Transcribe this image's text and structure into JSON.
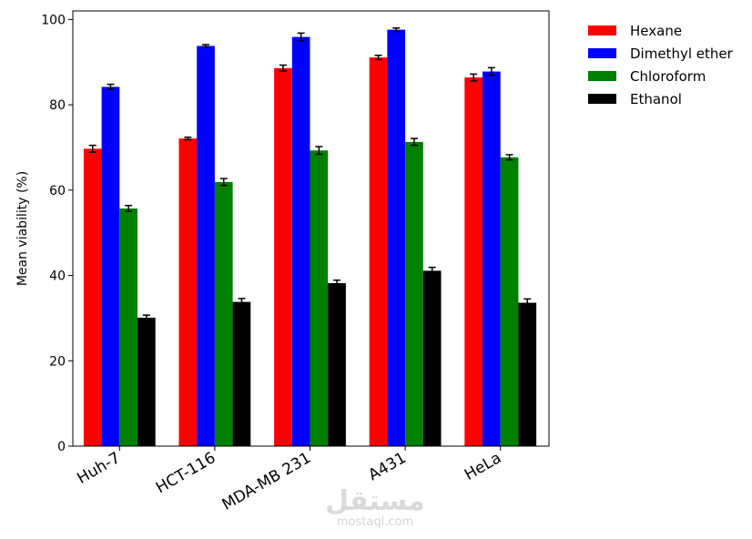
{
  "chart_data": {
    "type": "bar",
    "title": "",
    "xlabel": "",
    "ylabel": "Mean viability (%)",
    "ylim": [
      0,
      102
    ],
    "yticks": [
      0,
      20,
      40,
      60,
      80,
      100
    ],
    "grid": false,
    "legend_position": "outside-right-top",
    "categories": [
      "Huh-7",
      "HCT-116",
      "MDA-MB 231",
      "A431",
      "HeLa"
    ],
    "series": [
      {
        "name": "Hexane",
        "color": "#ff0000",
        "values": [
          69.7,
          72.1,
          88.6,
          91.1,
          86.4
        ],
        "errors": [
          0.8,
          0.3,
          0.7,
          0.5,
          0.8
        ]
      },
      {
        "name": "Dimethyl ether",
        "color": "#0000ff",
        "values": [
          84.2,
          93.8,
          95.9,
          97.6,
          87.8
        ],
        "errors": [
          0.6,
          0.3,
          0.9,
          0.4,
          0.9
        ]
      },
      {
        "name": "Chloroform",
        "color": "#008000",
        "values": [
          55.7,
          61.9,
          69.3,
          71.3,
          67.7
        ],
        "errors": [
          0.7,
          0.8,
          0.9,
          0.8,
          0.6
        ]
      },
      {
        "name": "Ethanol",
        "color": "#000000",
        "values": [
          30.1,
          33.8,
          38.2,
          41.1,
          33.6
        ],
        "errors": [
          0.6,
          0.8,
          0.7,
          0.8,
          0.9
        ]
      }
    ]
  },
  "watermark": {
    "arabic": "مستقل",
    "latin": "mostaql.com",
    "color": "#d9d9d9"
  }
}
